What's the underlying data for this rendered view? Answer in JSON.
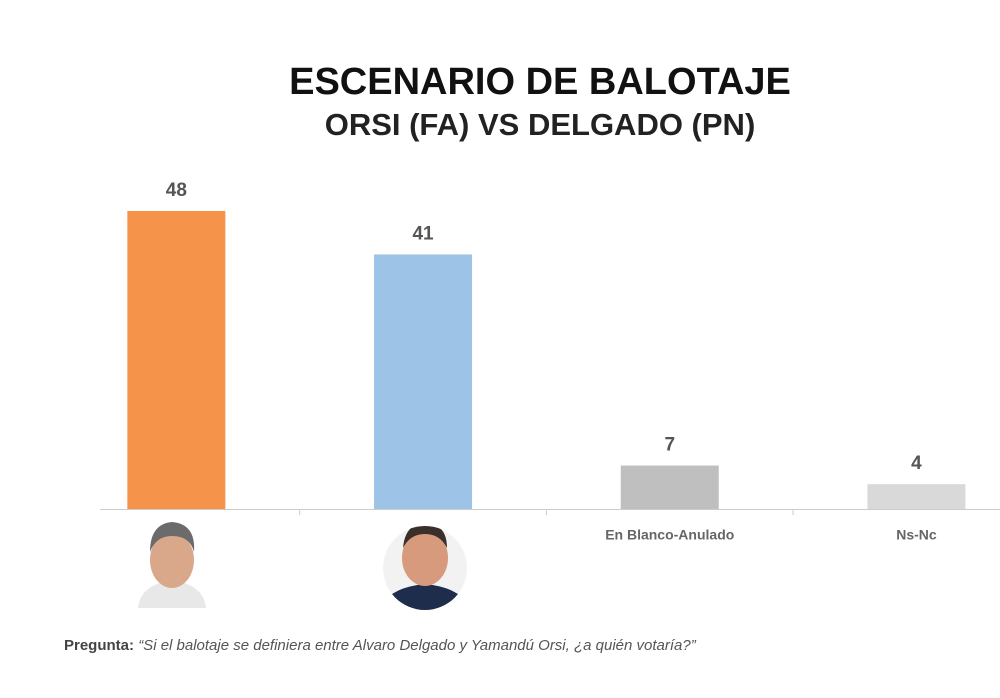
{
  "chart_data": {
    "type": "bar",
    "title": "ESCENARIO DE BALOTAJE",
    "subtitle": "ORSI (FA) VS DELGADO (PN)",
    "categories": [
      null,
      null,
      "En Blanco-Anulado",
      "Ns-Nc"
    ],
    "values": [
      48,
      41,
      7,
      4
    ],
    "colors": [
      "#f5934a",
      "#9dc3e6",
      "#bfbfbf",
      "#d9d9d9"
    ],
    "note_label": "Pregunta:",
    "note": "“Si el balotaje se definiera entre Alvaro Delgado y Yamandú Orsi, ¿a quién votaría?”"
  }
}
